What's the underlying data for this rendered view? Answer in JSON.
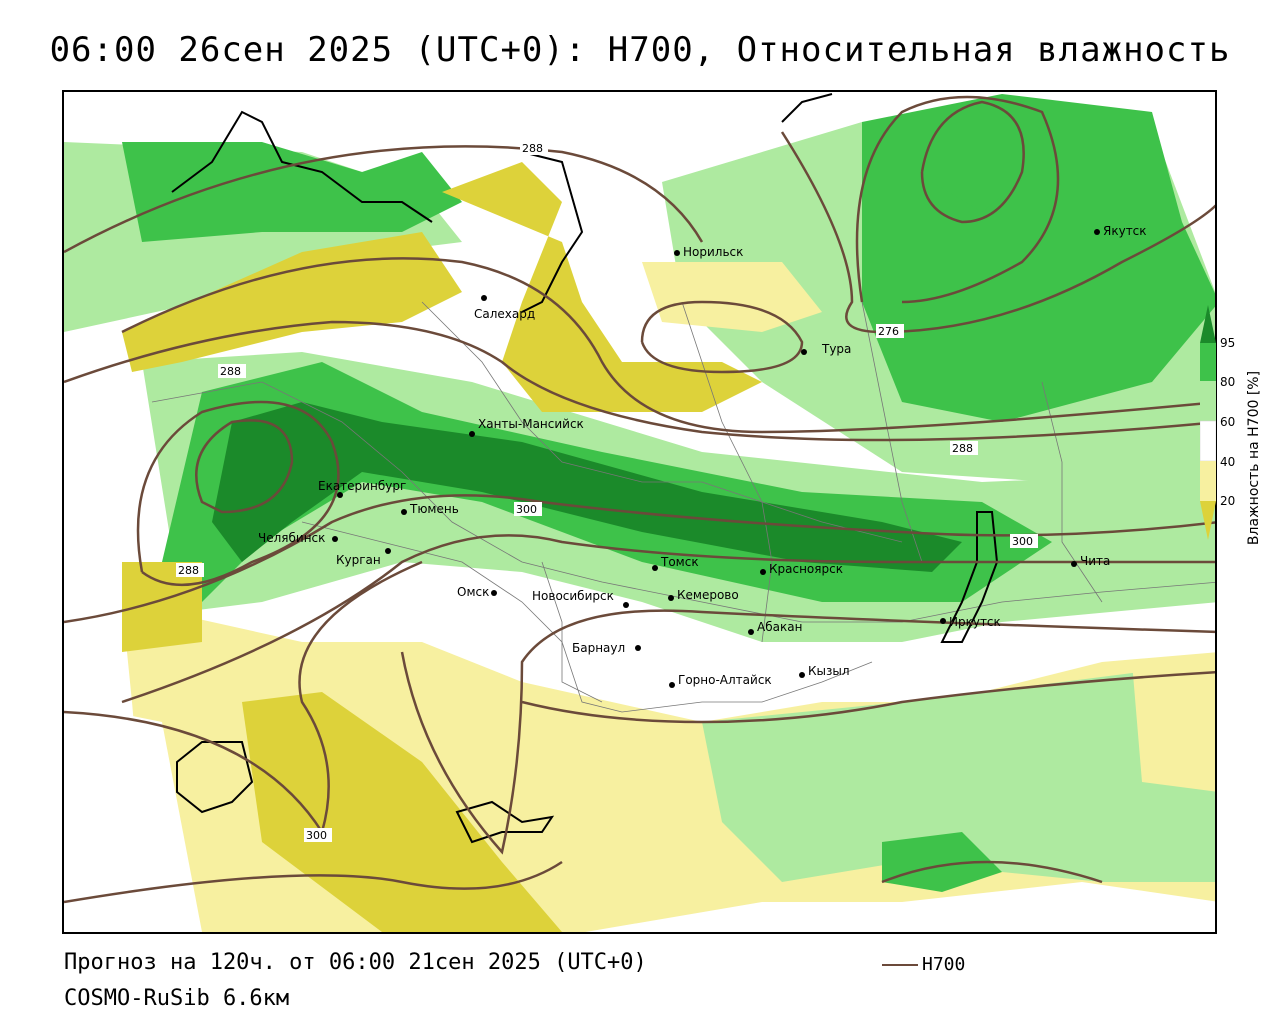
{
  "title": "06:00 26сен 2025 (UTC+0): H700, Относительная влажность",
  "forecast_line": "Прогноз на 120ч. от 06:00 21сен 2025 (UTC+0)",
  "model_line": "COSMO-RuSib 6.6км",
  "legend": {
    "series_label": "H700",
    "line_color": "#6b4a3a"
  },
  "colorbar": {
    "title": "Влажность на H700 [%]",
    "ticks": [
      "95",
      "80",
      "60",
      "40",
      "20"
    ],
    "colors": {
      "gt95": "#1b8a2a",
      "80_95": "#3ec24a",
      "60_80": "#aeeaa0",
      "40_60": "#ffffff",
      "20_40": "#f7f0a0",
      "lt20": "#ddd23a"
    }
  },
  "contour_labels": [
    "288",
    "288",
    "288",
    "288",
    "300",
    "300",
    "300",
    "276"
  ],
  "cities": [
    {
      "name": "Норильск"
    },
    {
      "name": "Якутск"
    },
    {
      "name": "Салехард"
    },
    {
      "name": "Тура"
    },
    {
      "name": "Ханты-Мансийск"
    },
    {
      "name": "Екатеринбург"
    },
    {
      "name": "Тюмень"
    },
    {
      "name": "Челябинск"
    },
    {
      "name": "Курган"
    },
    {
      "name": "Омск"
    },
    {
      "name": "Томск"
    },
    {
      "name": "Красноярск"
    },
    {
      "name": "Новосибирск"
    },
    {
      "name": "Кемерово"
    },
    {
      "name": "Чита"
    },
    {
      "name": "Абакан"
    },
    {
      "name": "Иркутск"
    },
    {
      "name": "Барнаул"
    },
    {
      "name": "Кызыл"
    },
    {
      "name": "Горно-Алтайск"
    }
  ]
}
